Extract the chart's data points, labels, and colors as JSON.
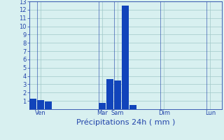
{
  "title": "Précipitations 24h ( mm )",
  "background_color": "#d8f0f0",
  "grid_color": "#a0c8c8",
  "bar_color": "#1144bb",
  "ylim": [
    0,
    13
  ],
  "yticks": [
    1,
    2,
    3,
    4,
    5,
    6,
    7,
    8,
    9,
    10,
    11,
    12,
    13
  ],
  "day_labels": [
    "Ven",
    "",
    "Mar",
    "Sam",
    "",
    "Dim",
    "",
    "Lun"
  ],
  "day_positions": [
    1,
    5,
    9,
    11,
    14,
    17,
    20,
    23
  ],
  "n_bars": 25,
  "bar_values": [
    1.3,
    1.1,
    0.9,
    0.0,
    0.0,
    0.0,
    0.0,
    0.0,
    0.0,
    0.8,
    3.6,
    3.5,
    12.5,
    0.5,
    0.0,
    0.0,
    0.0,
    0.0,
    0.0,
    0.0,
    0.0,
    0.0,
    0.0,
    0.0,
    0.0
  ],
  "tick_color": "#2244aa",
  "title_color": "#2244aa",
  "title_fontsize": 8,
  "tick_fontsize": 6,
  "figsize": [
    3.2,
    2.0
  ],
  "dpi": 100
}
